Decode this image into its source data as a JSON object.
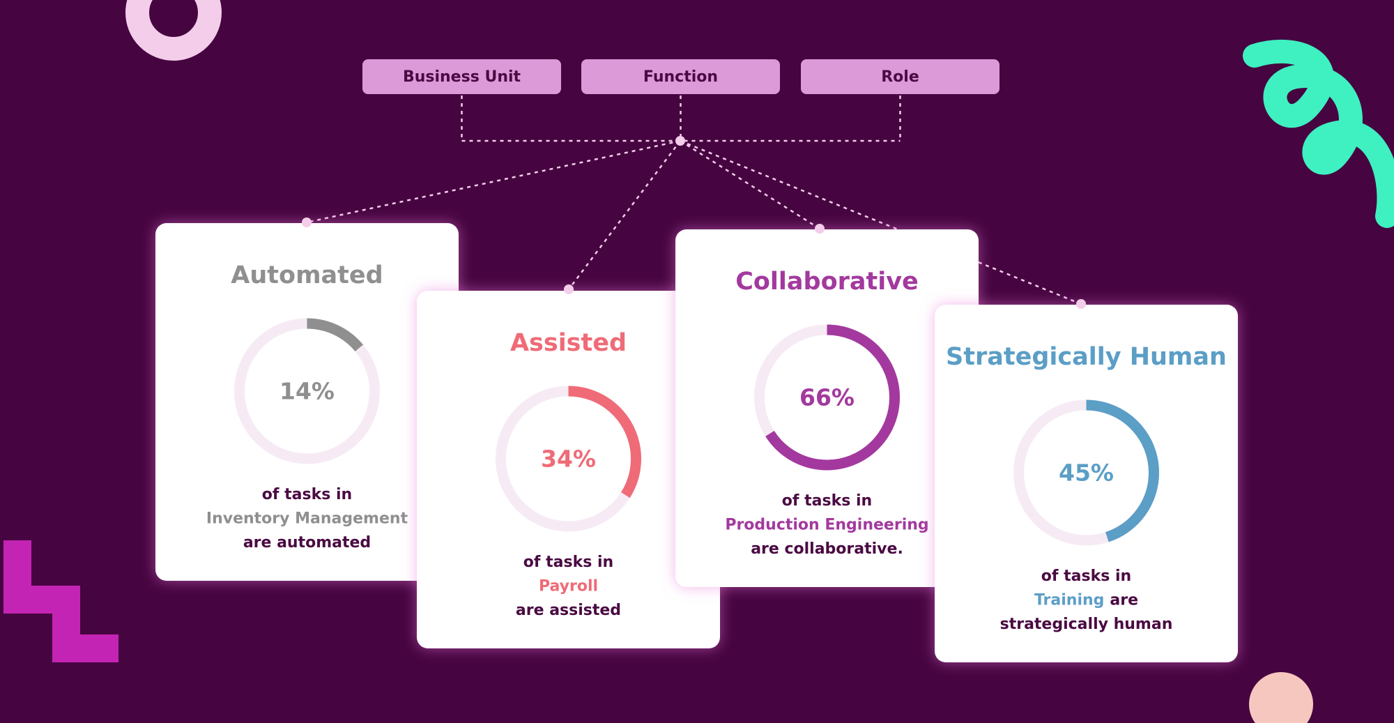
{
  "filters": [
    "Business Unit",
    "Function",
    "Role"
  ],
  "cards": [
    {
      "title": "Automated",
      "value": 14,
      "value_label": "14%",
      "color": "#8f8f8f",
      "lines": [
        [
          {
            "text": "of tasks in"
          }
        ],
        [
          {
            "text": "Inventory Management",
            "highlight": true
          }
        ],
        [
          {
            "text": "are automated"
          }
        ]
      ]
    },
    {
      "title": "Assisted",
      "value": 34,
      "value_label": "34%",
      "color": "#ef6b77",
      "lines": [
        [
          {
            "text": "of tasks in"
          }
        ],
        [
          {
            "text": "Payroll",
            "highlight": true
          }
        ],
        [
          {
            "text": "are assisted"
          }
        ]
      ]
    },
    {
      "title": "Collaborative",
      "value": 66,
      "value_label": "66%",
      "color": "#a3399e",
      "lines": [
        [
          {
            "text": "of tasks in"
          }
        ],
        [
          {
            "text": "Production Engineering",
            "highlight": true
          }
        ],
        [
          {
            "text": "are collaborative."
          }
        ]
      ]
    },
    {
      "title": "Strategically Human",
      "value": 45,
      "value_label": "45%",
      "color": "#5b9ec6",
      "lines": [
        [
          {
            "text": "of tasks in"
          }
        ],
        [
          {
            "text": "Training",
            "highlight": true
          },
          {
            "text": "are"
          }
        ],
        [
          {
            "text": "strategically human"
          }
        ]
      ]
    }
  ]
}
